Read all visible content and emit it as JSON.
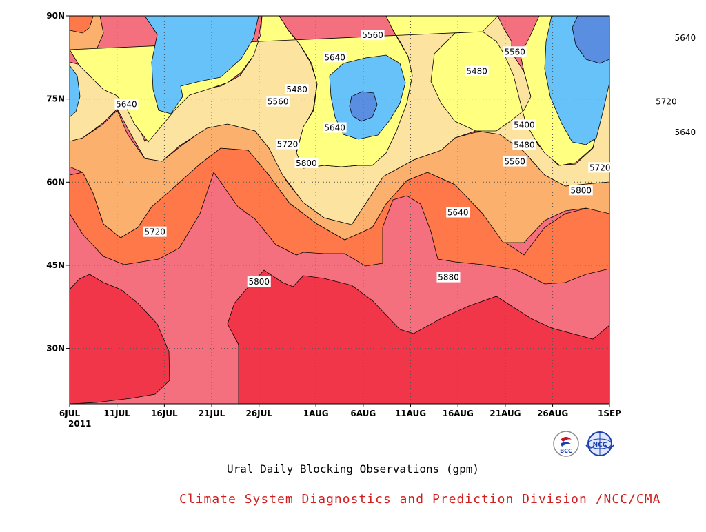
{
  "chart_data": {
    "type": "heatmap",
    "subtype": "filled-contour (time-latitude Hovmoller)",
    "title": "Ural Daily Blocking Observations (gpm)",
    "credit": "Climate System Diagnostics and Prediction Division /NCC/CMA",
    "x_tick_labels": [
      "6JUL",
      "11JUL",
      "16JUL",
      "21JUL",
      "26JUL",
      "1AUG",
      "6AUG",
      "11AUG",
      "16AUG",
      "21AUG",
      "26AUG",
      "1SEP"
    ],
    "x_year_label": "2011",
    "x_range": [
      "6JUL",
      "1SEP"
    ],
    "y_tick_labels": [
      "30N",
      "45N",
      "60N",
      "75N",
      "90N"
    ],
    "y_range": [
      20,
      90
    ],
    "grid": "dotted",
    "contour_levels": [
      5400,
      5480,
      5560,
      5640,
      5720,
      5800,
      5880
    ],
    "colors": {
      "lt5400": "#5a8ee0",
      "5400_5480": "#66c2f9",
      "5480_5560": "#ffff80",
      "5560_5640": "#fde3a0",
      "5640_5720": "#fbb06d",
      "5720_5800": "#fe784a",
      "5800_5880": "#f4707f",
      "gt5880": "#f2364a"
    },
    "contour_labels": [
      {
        "text": "5560",
        "d": 32,
        "lat": 86.5
      },
      {
        "text": "5560",
        "d": 47,
        "lat": 83.5
      },
      {
        "text": "5640",
        "d": 28,
        "lat": 82.5
      },
      {
        "text": "5480",
        "d": 43,
        "lat": 80.0
      },
      {
        "text": "5640",
        "d": 65,
        "lat": 86.0
      },
      {
        "text": "5480",
        "d": 24,
        "lat": 76.7
      },
      {
        "text": "5560",
        "d": 22,
        "lat": 74.5
      },
      {
        "text": "5640",
        "d": 6,
        "lat": 74.0
      },
      {
        "text": "5720",
        "d": 63,
        "lat": 74.5
      },
      {
        "text": "5400",
        "d": 48,
        "lat": 70.3
      },
      {
        "text": "5640",
        "d": 28,
        "lat": 69.8
      },
      {
        "text": "5640",
        "d": 65,
        "lat": 69.0
      },
      {
        "text": "5480",
        "d": 48,
        "lat": 66.7
      },
      {
        "text": "5720",
        "d": 23,
        "lat": 66.8
      },
      {
        "text": "5480",
        "d": 80,
        "lat": 66.8
      },
      {
        "text": "5560",
        "d": 47,
        "lat": 63.7
      },
      {
        "text": "5800",
        "d": 25,
        "lat": 63.4
      },
      {
        "text": "5720",
        "d": 56,
        "lat": 62.6
      },
      {
        "text": "5560",
        "d": 80,
        "lat": 62.8
      },
      {
        "text": "5800",
        "d": 54,
        "lat": 58.5
      },
      {
        "text": "5640",
        "d": 41,
        "lat": 54.5
      },
      {
        "text": "5720",
        "d": 9,
        "lat": 51.0
      },
      {
        "text": "5640",
        "d": 72,
        "lat": 49.8
      },
      {
        "text": "5720",
        "d": 73,
        "lat": 45.2
      },
      {
        "text": "5800",
        "d": 20,
        "lat": 42.0
      },
      {
        "text": "5880",
        "d": 40,
        "lat": 42.8
      },
      {
        "text": "5800",
        "d": 78,
        "lat": 40.7
      },
      {
        "text": "5880",
        "d": 69,
        "lat": 38.8
      }
    ]
  },
  "logos": [
    {
      "name": "bcc-logo",
      "text": "BCC",
      "color": "#c8102e"
    },
    {
      "name": "ncc-logo",
      "text": "NCC",
      "color": "#1a3faa"
    }
  ]
}
